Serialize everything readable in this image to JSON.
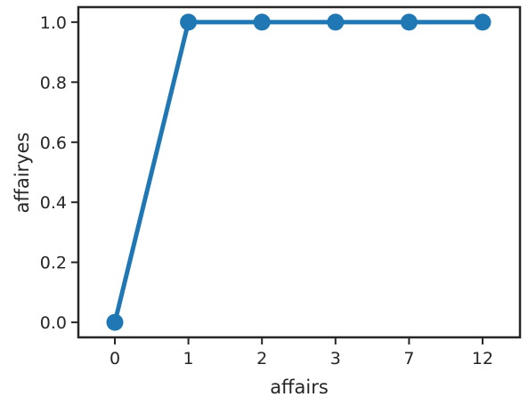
{
  "chart_data": {
    "type": "line",
    "title": "",
    "xlabel": "affairs",
    "ylabel": "affairyes",
    "categories": [
      "0",
      "1",
      "2",
      "3",
      "7",
      "12"
    ],
    "series": [
      {
        "values": [
          0.0,
          1.0,
          1.0,
          1.0,
          1.0,
          1.0
        ]
      }
    ],
    "ylim": [
      -0.05,
      1.05
    ],
    "yticks": [
      "0.0",
      "0.2",
      "0.4",
      "0.6",
      "0.8",
      "1.0"
    ],
    "grid": false,
    "legend": "none",
    "colors": {
      "line": "#1f77b4",
      "axes": "#262626"
    }
  }
}
